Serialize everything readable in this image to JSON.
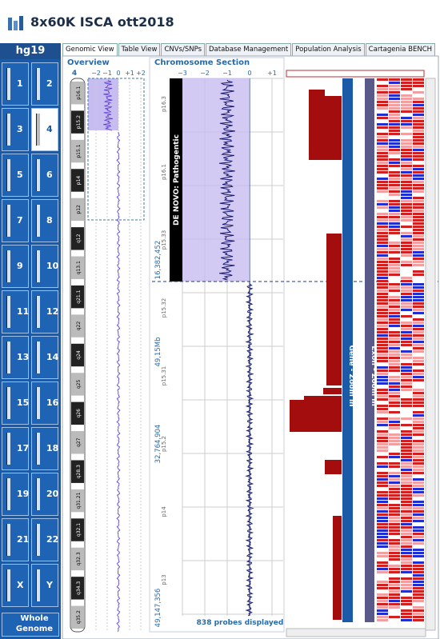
{
  "header": {
    "title": "8x60K ISCA ott2018"
  },
  "sidebar": {
    "genome": "hg19",
    "chromosomes": [
      "1",
      "2",
      "3",
      "4",
      "5",
      "6",
      "7",
      "8",
      "9",
      "10",
      "11",
      "12",
      "13",
      "14",
      "15",
      "16",
      "17",
      "18",
      "19",
      "20",
      "21",
      "22",
      "X",
      "Y"
    ],
    "selected": "4",
    "whole_genome": "Whole Genome"
  },
  "tabs": [
    "Genomic View",
    "Table View",
    "CNVs/SNPs",
    "Database Management",
    "Population Analysis",
    "Cartagenia BENCH"
  ],
  "overview": {
    "title": "Overview",
    "chromosome": "4",
    "axis_labels": [
      "−2",
      "−1",
      "0",
      "+1",
      "+2"
    ],
    "bands": [
      "p16.1",
      "p15.2",
      "p15.1",
      "p14",
      "p12",
      "q12",
      "q13.1",
      "q21.1",
      "q22",
      "q24",
      "q25",
      "q26",
      "q27",
      "q28.3",
      "q31.21",
      "q32.1",
      "q32.3",
      "q34.3",
      "q35.2"
    ]
  },
  "chromosome_section": {
    "title": "Chromosome Section",
    "axis_labels": [
      "−3",
      "−2",
      "−1",
      "0",
      "+1"
    ],
    "annotation": "DE NOVO: Pathogentic",
    "bands": [
      "p16.3",
      "p16.1",
      "p15.33",
      "p15.32",
      "p15.31",
      "p15.2",
      "p14",
      "p13"
    ],
    "positions": [
      "16,382,452",
      "49,15Mb",
      "32,764,904",
      "49,147,356"
    ],
    "footer": "838 probes displayed"
  },
  "tracks": {
    "gene": "Gene - Zoom in",
    "exon": "Exon - Zoom in"
  }
}
